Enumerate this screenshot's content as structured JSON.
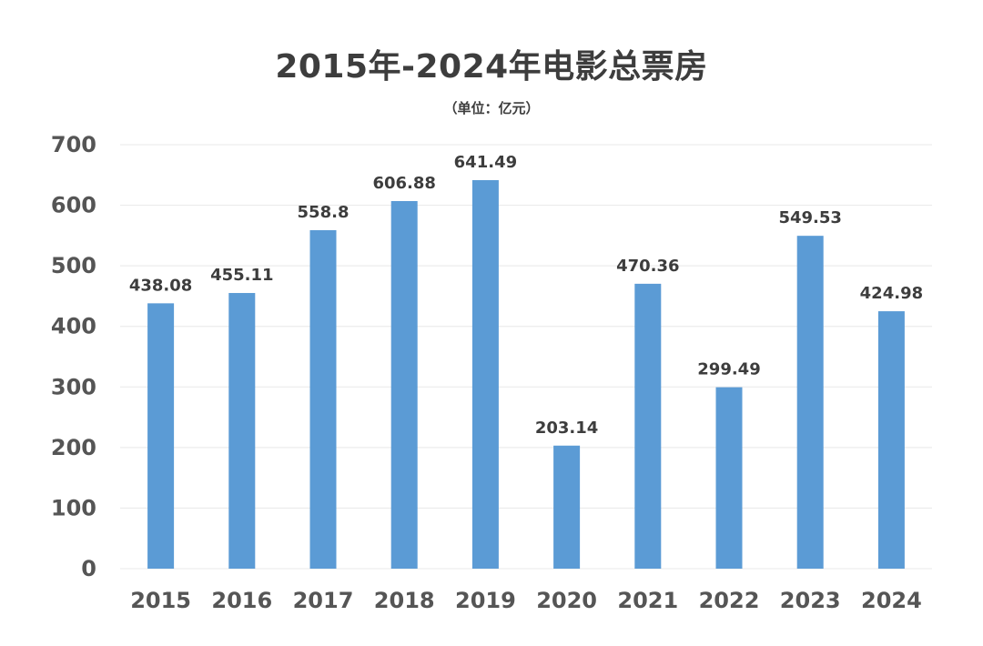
{
  "chart_data": {
    "type": "bar",
    "title": "2015年-2024年电影总票房",
    "subtitle": "（单位：亿元）",
    "categories": [
      "2015",
      "2016",
      "2017",
      "2018",
      "2019",
      "2020",
      "2021",
      "2022",
      "2023",
      "2024"
    ],
    "values": [
      438.08,
      455.11,
      558.8,
      606.88,
      641.49,
      203.14,
      470.36,
      299.49,
      549.53,
      424.98
    ],
    "value_labels": [
      "438.08",
      "455.11",
      "558.8",
      "606.88",
      "641.49",
      "203.14",
      "470.36",
      "299.49",
      "549.53",
      "424.98"
    ],
    "ylim": [
      0,
      700
    ],
    "yticks": [
      0,
      100,
      200,
      300,
      400,
      500,
      600,
      700
    ],
    "xlabel": "",
    "ylabel": "",
    "grid": true,
    "legend": "none",
    "colors": {
      "bar": "#5b9bd5",
      "grid": "#e8e8e8",
      "text": "#3d3d3d",
      "tick_text": "#555555"
    }
  }
}
